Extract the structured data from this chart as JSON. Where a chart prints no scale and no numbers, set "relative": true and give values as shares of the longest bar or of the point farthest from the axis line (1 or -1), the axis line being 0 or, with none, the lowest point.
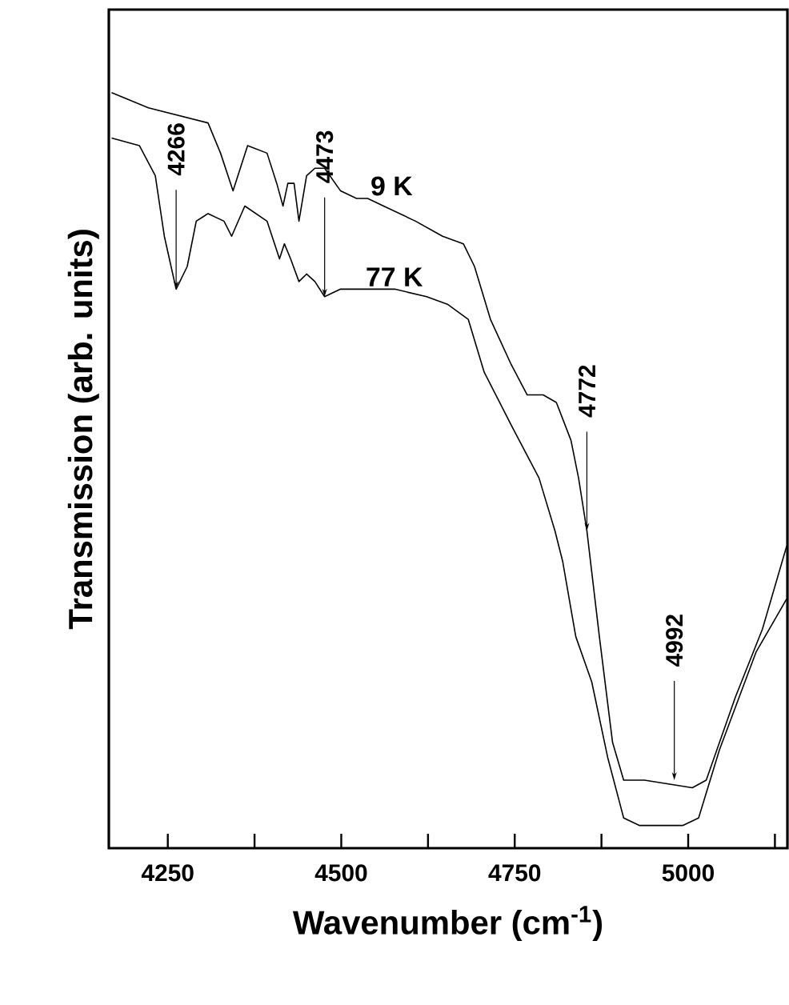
{
  "chart_data": {
    "type": "line",
    "relative": true,
    "xlabel": "Wavenumber (cm$^{-1}$)",
    "ylabel": "Transmission (arb. units)",
    "xlim": [
      4165,
      5143
    ],
    "xticks": [
      4250,
      {
        "value": 4375,
        "label": null
      },
      4500,
      {
        "value": 4625,
        "label": null
      },
      4750,
      {
        "value": 4875,
        "label": null
      },
      5000,
      {
        "value": 5125,
        "label": null
      }
    ],
    "series": [
      {
        "name": "9 K",
        "color": "#000000",
        "x": [
          4169,
          4222,
          4308,
          4326,
          4344,
          4365,
          4393,
          4407,
          4416,
          4423,
          4432,
          4439,
          4450,
          4462,
          4476,
          4499,
          4522,
          4538,
          4561,
          4607,
          4646,
          4676,
          4692,
          4715,
          4745,
          4768,
          4791,
          4810,
          4831,
          4842,
          4854,
          4872,
          4891,
          4907,
          4937,
          5006,
          5026,
          5068,
          5107,
          5142
        ],
        "values": [
          1.0,
          0.98,
          0.96,
          0.92,
          0.87,
          0.93,
          0.92,
          0.88,
          0.85,
          0.88,
          0.88,
          0.83,
          0.89,
          0.9,
          0.9,
          0.87,
          0.86,
          0.86,
          0.85,
          0.83,
          0.81,
          0.8,
          0.77,
          0.7,
          0.64,
          0.6,
          0.6,
          0.59,
          0.54,
          0.49,
          0.42,
          0.28,
          0.14,
          0.09,
          0.09,
          0.08,
          0.09,
          0.2,
          0.29,
          0.4
        ]
      },
      {
        "name": "77 K",
        "color": "#000000",
        "x": [
          4169,
          4209,
          4232,
          4245,
          4262,
          4278,
          4291,
          4308,
          4331,
          4342,
          4361,
          4393,
          4411,
          4418,
          4427,
          4439,
          4450,
          4462,
          4476,
          4499,
          4531,
          4577,
          4623,
          4653,
          4683,
          4706,
          4745,
          4785,
          4808,
          4819,
          4838,
          4861,
          4884,
          4907,
          4930,
          4992,
          5015,
          5045,
          5098,
          5142
        ],
        "values": [
          0.94,
          0.93,
          0.89,
          0.81,
          0.74,
          0.77,
          0.83,
          0.84,
          0.83,
          0.81,
          0.85,
          0.83,
          0.78,
          0.8,
          0.78,
          0.75,
          0.76,
          0.75,
          0.73,
          0.74,
          0.74,
          0.74,
          0.73,
          0.72,
          0.7,
          0.63,
          0.56,
          0.49,
          0.42,
          0.38,
          0.28,
          0.22,
          0.12,
          0.04,
          0.03,
          0.03,
          0.04,
          0.13,
          0.26,
          0.33
        ]
      }
    ],
    "annotations": [
      {
        "text": "4266",
        "x": 4262,
        "y": 0.74
      },
      {
        "text": "4473",
        "x": 4476,
        "y": 0.73
      },
      {
        "text": "4772",
        "x": 4854,
        "y": 0.42
      },
      {
        "text": "4992",
        "x": 4980,
        "y": 0.09
      }
    ],
    "grid": false,
    "line_style": "solid"
  }
}
